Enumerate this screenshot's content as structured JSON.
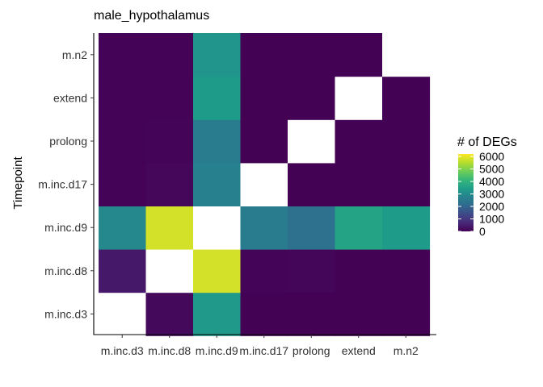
{
  "chart_data": {
    "type": "heatmap",
    "title": "male_hypothalamus",
    "xlabel": "",
    "ylabel": "Timepoint",
    "x_categories": [
      "m.inc.d3",
      "m.inc.d8",
      "m.inc.d9",
      "m.inc.d17",
      "prolong",
      "extend",
      "m.n2"
    ],
    "y_categories": [
      "m.inc.d3",
      "m.inc.d8",
      "m.inc.d9",
      "m.inc.d17",
      "prolong",
      "extend",
      "m.n2"
    ],
    "values": [
      [
        null,
        150,
        3300,
        20,
        15,
        15,
        15
      ],
      [
        400,
        null,
        5800,
        60,
        80,
        20,
        20
      ],
      [
        2900,
        5800,
        null,
        2600,
        2300,
        3600,
        3400
      ],
      [
        30,
        100,
        2700,
        null,
        10,
        10,
        10
      ],
      [
        30,
        70,
        2600,
        10,
        null,
        10,
        10
      ],
      [
        30,
        30,
        3400,
        10,
        10,
        null,
        10
      ],
      [
        30,
        30,
        3200,
        10,
        10,
        10,
        null
      ]
    ],
    "legend": {
      "title": "# of DEGs",
      "ticks": [
        6000,
        5000,
        4000,
        3000,
        2000,
        1000,
        0
      ],
      "tick_labels": [
        "6000",
        "5000",
        "4000",
        "3000",
        "2000",
        "1000",
        "0"
      ],
      "min": 0,
      "max": 6200,
      "colormap": "viridis",
      "placement": "right"
    },
    "missing_color": "#ffffff",
    "grid": false
  }
}
